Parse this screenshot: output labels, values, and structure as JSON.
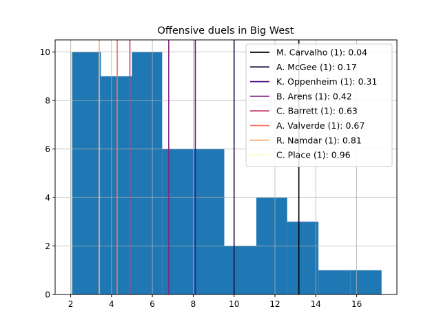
{
  "chart_data": {
    "type": "bar",
    "title": "Offensive duels in Big West",
    "xlabel": "",
    "ylabel": "",
    "xlim": [
      1.24,
      17.97
    ],
    "ylim": [
      0,
      10.5
    ],
    "xticks": [
      2,
      4,
      6,
      8,
      10,
      12,
      14,
      16
    ],
    "yticks": [
      0,
      2,
      4,
      6,
      8,
      10
    ],
    "grid": true,
    "bar_color": "#1f77b4",
    "bins": [
      {
        "x0": 2.0,
        "x1": 3.48,
        "count": 10
      },
      {
        "x0": 3.48,
        "x1": 5.0,
        "count": 9
      },
      {
        "x0": 5.0,
        "x1": 6.48,
        "count": 10
      },
      {
        "x0": 6.48,
        "x1": 8.0,
        "count": 6
      },
      {
        "x0": 8.0,
        "x1": 9.52,
        "count": 6
      },
      {
        "x0": 9.52,
        "x1": 11.09,
        "count": 2
      },
      {
        "x0": 11.09,
        "x1": 12.6,
        "count": 4
      },
      {
        "x0": 12.6,
        "x1": 14.13,
        "count": 3
      },
      {
        "x0": 14.13,
        "x1": 15.7,
        "count": 1
      },
      {
        "x0": 15.7,
        "x1": 17.22,
        "count": 1
      }
    ],
    "legend_position": "upper right",
    "series": [
      {
        "name": "M. Carvalho (1): 0.04",
        "x": 13.17,
        "color": "#000004"
      },
      {
        "name": "A. McGee (1): 0.17",
        "x": 10.0,
        "color": "#1c1044"
      },
      {
        "name": "K. Oppenheim (1): 0.31",
        "x": 8.1,
        "color": "#51127c"
      },
      {
        "name": "B. Arens (1): 0.42",
        "x": 6.8,
        "color": "#832681"
      },
      {
        "name": "C. Barrett (1): 0.63",
        "x": 4.9,
        "color": "#c83e73"
      },
      {
        "name": "A. Valverde (1): 0.67",
        "x": 4.28,
        "color": "#f7705c"
      },
      {
        "name": "R. Namdar (1): 0.81",
        "x": 3.4,
        "color": "#feb078"
      },
      {
        "name": "C. Place (1): 0.96",
        "x": 2.05,
        "color": "#fcfdbf"
      }
    ]
  }
}
